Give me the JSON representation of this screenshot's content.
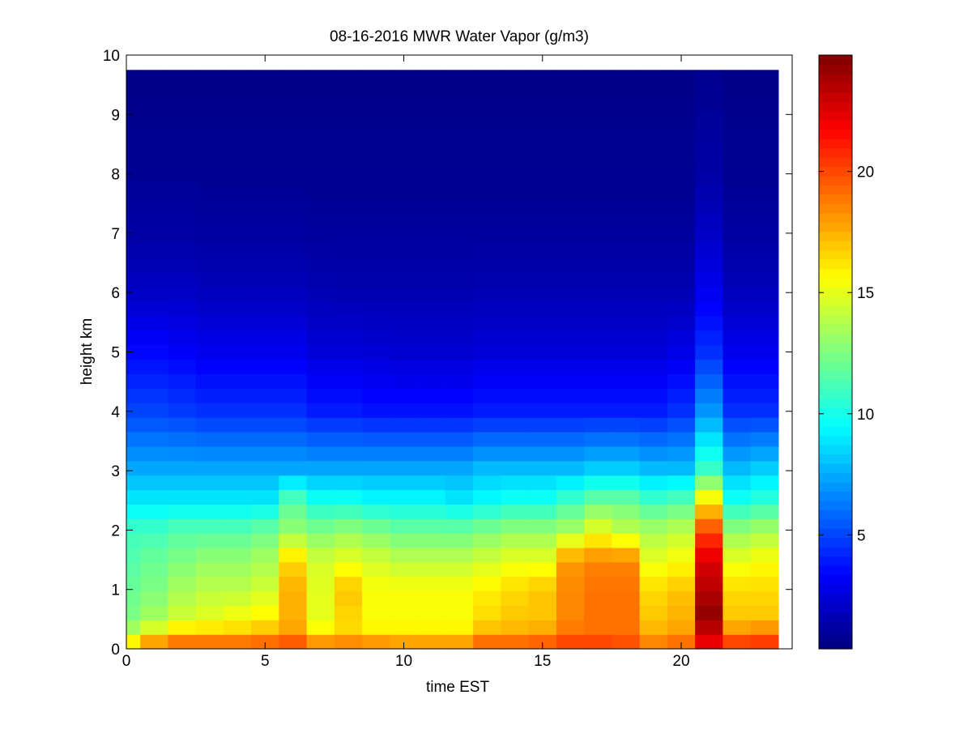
{
  "chart_data": {
    "type": "heatmap",
    "title": "08-16-2016 MWR Water Vapor (g/m3)",
    "xlabel": "time EST",
    "ylabel": "height km",
    "xlim": [
      0,
      24
    ],
    "ylim": [
      0,
      10
    ],
    "x_ticks": [
      "0",
      "5",
      "10",
      "15",
      "20"
    ],
    "y_ticks": [
      "0",
      "1",
      "2",
      "3",
      "4",
      "5",
      "6",
      "7",
      "8",
      "9",
      "10"
    ],
    "colorbar": {
      "colormap": "jet",
      "range": [
        0.3,
        24.8
      ],
      "ticks": [
        "5",
        "10",
        "15",
        "20"
      ]
    },
    "grid": false,
    "time_bins_hours": [
      0,
      0.5,
      1.5,
      2.5,
      3.5,
      4.5,
      5.5,
      6.5,
      7.5,
      8.5,
      9.5,
      10.5,
      11.5,
      12.5,
      13.5,
      14.5,
      15.5,
      16.5,
      17.5,
      18.5,
      19.5,
      20.5,
      21.5,
      22.5,
      23.5
    ],
    "max_height_km": 9.75,
    "profile_heights_km": [
      0,
      0.25,
      0.5,
      1,
      1.5,
      2,
      2.5,
      3,
      4,
      5,
      6,
      7,
      8,
      9.75
    ],
    "profiles": [
      [
        17.5,
        14.0,
        12.5,
        12.0,
        11.5,
        11.0,
        9.0,
        7.5,
        5.0,
        3.5,
        2.0,
        1.2,
        0.8,
        0.5
      ],
      [
        20.0,
        15.5,
        13.5,
        12.5,
        12.0,
        11.0,
        9.0,
        7.5,
        5.0,
        3.5,
        2.0,
        1.2,
        0.8,
        0.5
      ],
      [
        20.5,
        17.0,
        14.5,
        13.5,
        12.5,
        11.5,
        9.0,
        7.5,
        4.8,
        3.3,
        2.0,
        1.2,
        0.8,
        0.5
      ],
      [
        20.5,
        17.0,
        15.0,
        14.0,
        13.0,
        11.5,
        9.0,
        7.5,
        4.5,
        3.0,
        1.8,
        1.1,
        0.8,
        0.5
      ],
      [
        20.5,
        17.0,
        15.5,
        14.0,
        13.0,
        11.5,
        9.0,
        7.5,
        4.5,
        3.0,
        1.8,
        1.1,
        0.8,
        0.5
      ],
      [
        20.5,
        17.5,
        16.0,
        14.5,
        13.5,
        12.0,
        9.0,
        7.5,
        4.5,
        3.0,
        1.8,
        1.1,
        0.8,
        0.5
      ],
      [
        21.0,
        18.0,
        17.5,
        17.5,
        16.5,
        13.0,
        11.5,
        7.5,
        4.5,
        3.0,
        1.8,
        1.1,
        0.8,
        0.5
      ],
      [
        20.0,
        16.0,
        15.0,
        15.0,
        14.5,
        12.5,
        10.0,
        7.5,
        4.0,
        2.5,
        1.6,
        1.0,
        0.8,
        0.5
      ],
      [
        20.0,
        16.5,
        16.5,
        17.0,
        15.0,
        13.0,
        10.0,
        7.5,
        4.0,
        2.5,
        1.5,
        1.0,
        0.8,
        0.5
      ],
      [
        20.0,
        16.0,
        15.5,
        15.5,
        14.5,
        12.5,
        9.5,
        7.5,
        3.8,
        2.4,
        1.5,
        1.0,
        0.8,
        0.5
      ],
      [
        19.5,
        16.0,
        15.5,
        15.5,
        14.0,
        12.0,
        9.5,
        7.5,
        3.8,
        2.3,
        1.5,
        1.0,
        0.8,
        0.5
      ],
      [
        19.5,
        16.0,
        15.5,
        15.5,
        14.0,
        12.0,
        9.5,
        7.5,
        3.8,
        2.3,
        1.5,
        1.0,
        0.8,
        0.5
      ],
      [
        19.5,
        16.0,
        15.5,
        15.5,
        14.0,
        12.0,
        9.0,
        7.5,
        3.8,
        2.3,
        1.5,
        1.0,
        0.8,
        0.5
      ],
      [
        20.5,
        17.5,
        16.5,
        16.0,
        14.5,
        12.5,
        9.5,
        8.0,
        4.0,
        2.5,
        1.6,
        1.0,
        0.8,
        0.5
      ],
      [
        20.5,
        17.5,
        17.0,
        16.5,
        15.0,
        13.0,
        10.0,
        8.0,
        4.0,
        2.5,
        1.6,
        1.0,
        0.8,
        0.5
      ],
      [
        20.5,
        18.0,
        17.0,
        17.0,
        15.0,
        13.0,
        10.0,
        8.0,
        4.0,
        2.5,
        1.6,
        1.0,
        0.8,
        0.5
      ],
      [
        21.0,
        19.0,
        18.5,
        18.5,
        18.0,
        13.5,
        11.0,
        8.0,
        4.0,
        2.5,
        1.6,
        1.0,
        0.8,
        0.5
      ],
      [
        21.0,
        19.0,
        19.0,
        19.0,
        18.5,
        15.0,
        12.0,
        8.5,
        4.0,
        2.5,
        1.6,
        1.0,
        0.8,
        0.5
      ],
      [
        20.5,
        19.0,
        19.0,
        19.0,
        18.5,
        14.0,
        12.0,
        8.5,
        4.0,
        2.5,
        1.6,
        1.0,
        0.8,
        0.5
      ],
      [
        19.5,
        17.5,
        17.0,
        16.5,
        15.0,
        13.5,
        11.0,
        8.0,
        4.0,
        2.5,
        1.6,
        1.0,
        0.8,
        0.5
      ],
      [
        20.0,
        18.0,
        17.5,
        17.0,
        15.5,
        14.0,
        11.5,
        8.0,
        4.5,
        2.8,
        1.6,
        1.0,
        0.8,
        0.5
      ],
      [
        22.0,
        22.5,
        24.5,
        23.5,
        22.5,
        20.0,
        16.0,
        11.0,
        7.0,
        4.5,
        3.0,
        2.0,
        1.2,
        0.7
      ],
      [
        21.5,
        18.5,
        17.0,
        16.5,
        15.0,
        13.0,
        10.0,
        8.0,
        4.5,
        3.0,
        1.8,
        1.1,
        0.8,
        0.5
      ],
      [
        21.5,
        19.0,
        17.0,
        16.5,
        15.5,
        13.5,
        10.5,
        8.5,
        4.5,
        3.0,
        1.8,
        1.1,
        0.8,
        0.5
      ]
    ]
  }
}
